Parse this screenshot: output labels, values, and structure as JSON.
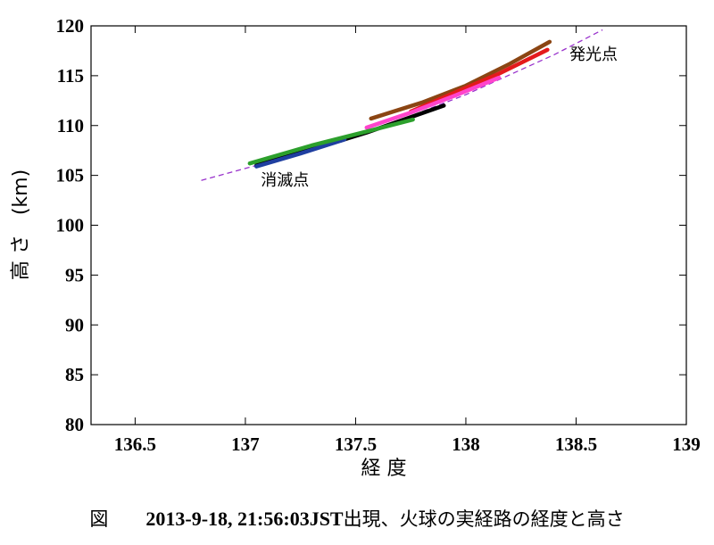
{
  "chart_data": {
    "type": "line",
    "xlabel": "経 度",
    "ylabel": "高 さ　(km)",
    "xlim": [
      136.3,
      139.0
    ],
    "ylim": [
      80,
      120
    ],
    "x_ticks": [
      "136.5",
      "137",
      "137.5",
      "138",
      "138.5",
      "139"
    ],
    "x_tick_values": [
      136.5,
      137.0,
      137.5,
      138.0,
      138.5,
      139.0
    ],
    "y_ticks": [
      "80",
      "85",
      "90",
      "95",
      "100",
      "105",
      "110",
      "115",
      "120"
    ],
    "y_tick_values": [
      80,
      85,
      90,
      95,
      100,
      105,
      110,
      115,
      120
    ],
    "grid": false,
    "series": [
      {
        "color": "#8B4513",
        "x": [
          137.57,
          137.8,
          138.0,
          138.2,
          138.38
        ],
        "y": [
          110.7,
          112.3,
          114.0,
          116.2,
          118.4
        ]
      },
      {
        "color": "#E41A1C",
        "x": [
          137.75,
          137.95,
          138.15,
          138.37
        ],
        "y": [
          111.4,
          113.3,
          115.2,
          117.6
        ]
      },
      {
        "color": "#FF44CC",
        "x": [
          137.55,
          137.75,
          137.95,
          138.15
        ],
        "y": [
          109.8,
          111.3,
          113.0,
          114.8
        ]
      },
      {
        "color": "#000000",
        "x": [
          137.05,
          137.3,
          137.55,
          137.9
        ],
        "y": [
          106.0,
          107.6,
          109.3,
          112.0
        ]
      },
      {
        "color": "#1F3FA0",
        "x": [
          137.05,
          137.25,
          137.45
        ],
        "y": [
          105.9,
          107.2,
          108.6
        ]
      },
      {
        "color": "#2CA02C",
        "x": [
          137.02,
          137.3,
          137.55,
          137.76
        ],
        "y": [
          106.2,
          108.0,
          109.4,
          110.6
        ]
      }
    ],
    "fit_line": {
      "color": "#9932CC",
      "style": "dashed",
      "x": [
        136.8,
        137.2,
        137.6,
        138.0,
        138.4,
        138.62
      ],
      "y": [
        104.5,
        106.9,
        109.7,
        113.1,
        117.1,
        119.6
      ]
    },
    "annotations": [
      {
        "text": "発光点",
        "x": 138.47,
        "y": 116.6
      },
      {
        "text": "消滅点",
        "x": 137.07,
        "y": 104.0
      }
    ]
  },
  "caption": {
    "figure_label": "図",
    "date_text": "2013-9-18, 21:56:03JST",
    "description": "出現、火球の実経路の経度と高さ"
  }
}
